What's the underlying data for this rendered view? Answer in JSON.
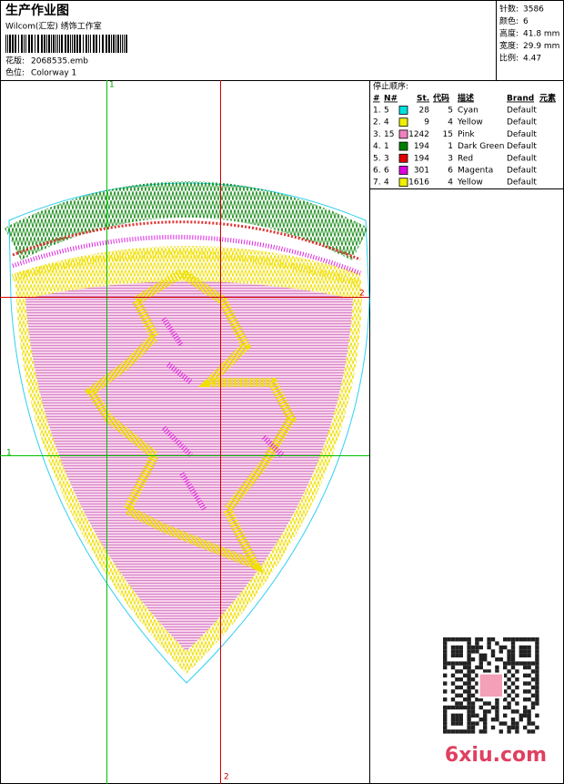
{
  "header": {
    "title": "生产作业图",
    "studio": "Wilcom(汇宏) 绣饰工作室",
    "design_label": "花版:",
    "design_file": "2068535.emb",
    "colorway_label": "色位:",
    "colorway": "Colorway 1"
  },
  "stats": [
    {
      "label": "针数:",
      "value": "3586"
    },
    {
      "label": "颜色:",
      "value": "6"
    },
    {
      "label": "高度:",
      "value": "41.8 mm"
    },
    {
      "label": "宽度:",
      "value": "29.9 mm"
    },
    {
      "label": "比例:",
      "value": "4.47"
    }
  ],
  "stop_sequence": {
    "title": "停止顺序:",
    "columns": [
      "#",
      "N#",
      "St.",
      "代码",
      "描述",
      "Brand",
      "元素"
    ],
    "rows": [
      {
        "num": "1.",
        "n": "5",
        "color": "#00e0e0",
        "stitches": "28",
        "code": "5",
        "desc": "Cyan",
        "brand": "Default"
      },
      {
        "num": "2.",
        "n": "4",
        "color": "#f0f000",
        "stitches": "9",
        "code": "4",
        "desc": "Yellow",
        "brand": "Default"
      },
      {
        "num": "3.",
        "n": "15",
        "color": "#f080c0",
        "stitches": "1242",
        "code": "15",
        "desc": "Pink",
        "brand": "Default"
      },
      {
        "num": "4.",
        "n": "1",
        "color": "#008000",
        "stitches": "194",
        "code": "1",
        "desc": "Dark Green",
        "brand": "Default"
      },
      {
        "num": "5.",
        "n": "3",
        "color": "#e00000",
        "stitches": "194",
        "code": "3",
        "desc": "Red",
        "brand": "Default"
      },
      {
        "num": "6.",
        "n": "6",
        "color": "#e000e0",
        "stitches": "301",
        "code": "6",
        "desc": "Magenta",
        "brand": "Default"
      },
      {
        "num": "7.",
        "n": "4",
        "color": "#f0f000",
        "stitches": "1616",
        "code": "4",
        "desc": "Yellow",
        "brand": "Default"
      }
    ]
  },
  "guides": {
    "green_top": "1",
    "green_left": "1",
    "red_right": "2",
    "red_bottom": "2"
  },
  "watermark": "6xiu.com"
}
